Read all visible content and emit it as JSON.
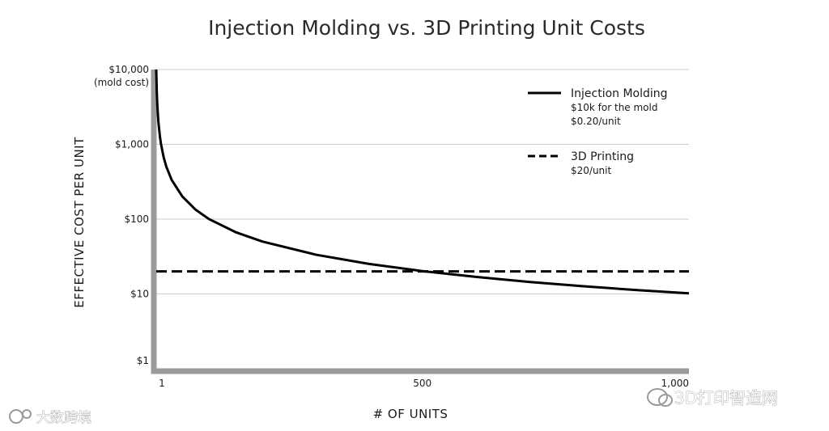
{
  "chart_data": {
    "type": "line",
    "title": "Injection Molding vs. 3D Printing Unit Costs",
    "xlabel": "# OF UNITS",
    "ylabel": "EFFECTIVE COST PER UNIT",
    "xlim": [
      1,
      1000
    ],
    "ylim": [
      1,
      10000
    ],
    "yscale": "log",
    "grid": true,
    "legend_position": "top-right",
    "x_ticks": [
      {
        "value": 1,
        "label": "1"
      },
      {
        "value": 500,
        "label": "500"
      },
      {
        "value": 1000,
        "label": "1,000"
      }
    ],
    "y_ticks": [
      {
        "value": 10000,
        "label": "$10,000",
        "sublabel": "(mold cost)"
      },
      {
        "value": 1000,
        "label": "$1,000"
      },
      {
        "value": 100,
        "label": "$100"
      },
      {
        "value": 10,
        "label": "$10"
      },
      {
        "value": 1,
        "label": "$1"
      }
    ],
    "series": [
      {
        "name": "Injection Molding",
        "legend_details": [
          "$10k for the mold",
          "$0.20/unit"
        ],
        "line_style": "solid",
        "color": "#000000",
        "x": [
          1,
          2,
          3,
          5,
          8,
          10,
          15,
          20,
          30,
          50,
          75,
          100,
          150,
          200,
          300,
          400,
          500,
          600,
          700,
          800,
          900,
          1000
        ],
        "y": [
          10000.2,
          5000.2,
          3333.5,
          2000.2,
          1250.2,
          1000.2,
          666.9,
          500.2,
          333.5,
          200.2,
          133.5,
          100.2,
          66.9,
          50.2,
          33.5,
          25.2,
          20.2,
          16.9,
          14.5,
          12.7,
          11.3,
          10.2
        ]
      },
      {
        "name": "3D Printing",
        "legend_details": [
          "$20/unit"
        ],
        "line_style": "dashed",
        "color": "#000000",
        "x": [
          1,
          1000
        ],
        "y": [
          20,
          20
        ]
      }
    ]
  },
  "watermarks": {
    "left": "大数跨境",
    "right": "3D打印智造网"
  }
}
